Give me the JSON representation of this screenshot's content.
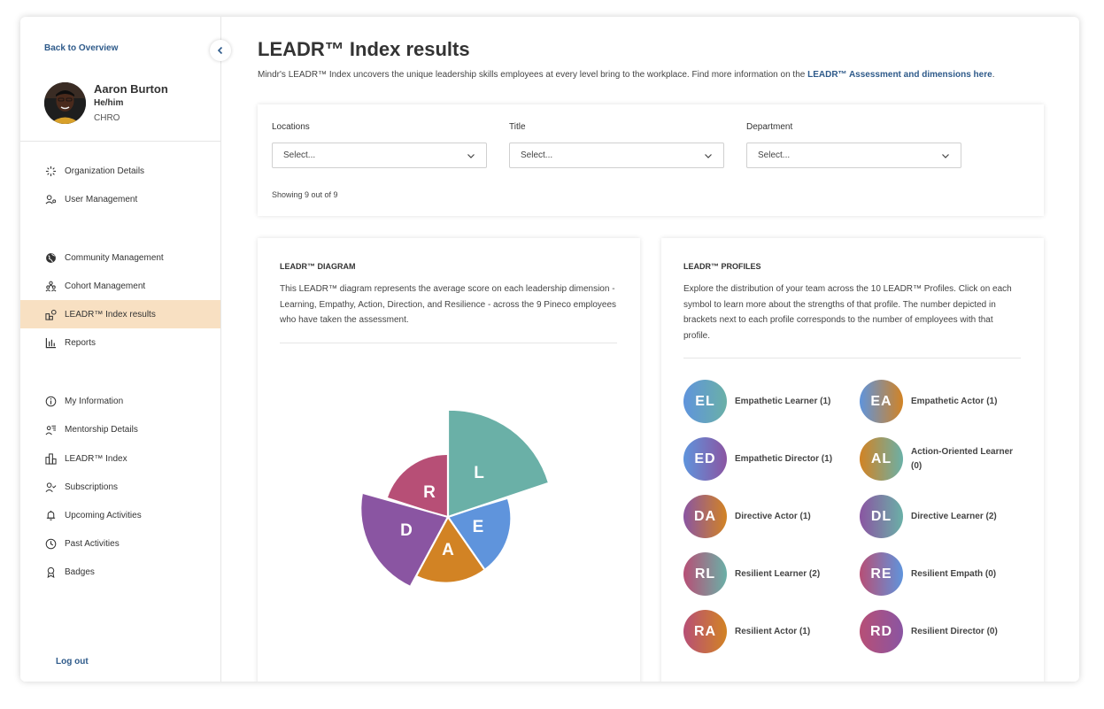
{
  "sidebar": {
    "back_label": "Back to Overview",
    "user": {
      "name": "Aaron Burton",
      "pronouns": "He/him",
      "role": "CHRO"
    },
    "items": [
      {
        "label": "Organization Details",
        "icon": "sparkle-icon"
      },
      {
        "label": "User Management",
        "icon": "user-gear-icon"
      },
      {
        "label": "Community Management",
        "icon": "globe-icon"
      },
      {
        "label": "Cohort Management",
        "icon": "group-icon"
      },
      {
        "label": "LEADR™ Index results",
        "icon": "shapes-icon",
        "active": true
      },
      {
        "label": "Reports",
        "icon": "bar-chart-icon"
      },
      {
        "label": "My Information",
        "icon": "info-icon"
      },
      {
        "label": "Mentorship Details",
        "icon": "mentor-icon"
      },
      {
        "label": "LEADR™ Index",
        "icon": "blocks-icon"
      },
      {
        "label": "Subscriptions",
        "icon": "user-check-icon"
      },
      {
        "label": "Upcoming Activities",
        "icon": "bell-icon"
      },
      {
        "label": "Past Activities",
        "icon": "clock-icon"
      },
      {
        "label": "Badges",
        "icon": "ribbon-icon"
      }
    ],
    "logout_label": "Log out"
  },
  "main": {
    "title": "LEADR™ Index results",
    "description": "Mindr's LEADR™ Index uncovers the unique leadership skills employees at every level bring to the workplace. Find more information on the ",
    "description_link": "LEADR™ Assessment and dimensions here",
    "description_end": ".",
    "filters": [
      {
        "label": "Locations",
        "placeholder": "Select..."
      },
      {
        "label": "Title",
        "placeholder": "Select..."
      },
      {
        "label": "Department",
        "placeholder": "Select..."
      }
    ],
    "showing": "Showing 9 out of 9"
  },
  "diagram": {
    "title": "LEADR™ DIAGRAM",
    "description": "This LEADR™ diagram represents the average score on each leadership dimension - Learning, Empathy, Action, Direction, and Resilience - across the 9 Pineco employees who have taken the assessment.",
    "slices": [
      {
        "letter": "L",
        "color": "#6ab0a7"
      },
      {
        "letter": "E",
        "color": "#5f94dc"
      },
      {
        "letter": "A",
        "color": "#d28324"
      },
      {
        "letter": "D",
        "color": "#8a55a2"
      },
      {
        "letter": "R",
        "color": "#b74f76"
      }
    ]
  },
  "profiles": {
    "title": "LEADR™ PROFILES",
    "description": "Explore the distribution of your team across the 10 LEADR™ Profiles. Click on each symbol to learn more about the strengths of that profile. The number depicted in brackets next to each profile corresponds to the number of employees with that profile.",
    "items": [
      {
        "abbr": "EL",
        "label": "Empathetic Learner (1)",
        "c1": "#5f94dc",
        "c2": "#6ab0a7"
      },
      {
        "abbr": "EA",
        "label": "Empathetic Actor (1)",
        "c1": "#5f94dc",
        "c2": "#d28324"
      },
      {
        "abbr": "ED",
        "label": "Empathetic Director (1)",
        "c1": "#5f94dc",
        "c2": "#8a55a2"
      },
      {
        "abbr": "AL",
        "label": "Action-Oriented Learner (0)",
        "c1": "#d28324",
        "c2": "#6ab0a7"
      },
      {
        "abbr": "DA",
        "label": "Directive Actor (1)",
        "c1": "#8a55a2",
        "c2": "#d28324"
      },
      {
        "abbr": "DL",
        "label": "Directive Learner (2)",
        "c1": "#8a55a2",
        "c2": "#6ab0a7"
      },
      {
        "abbr": "RL",
        "label": "Resilient Learner (2)",
        "c1": "#b74f76",
        "c2": "#6ab0a7"
      },
      {
        "abbr": "RE",
        "label": "Resilient Empath (0)",
        "c1": "#b74f76",
        "c2": "#5f94dc"
      },
      {
        "abbr": "RA",
        "label": "Resilient Actor (1)",
        "c1": "#b74f76",
        "c2": "#d28324"
      },
      {
        "abbr": "RD",
        "label": "Resilient Director (0)",
        "c1": "#b74f76",
        "c2": "#8a55a2"
      }
    ]
  }
}
